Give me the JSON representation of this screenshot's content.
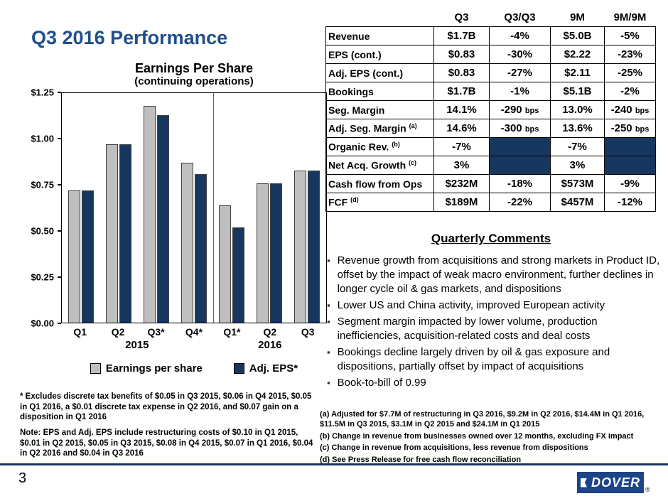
{
  "slide": {
    "title": "Q3 2016 Performance",
    "page_number": "3",
    "logo_text": "DOVER",
    "logo_registered": "®"
  },
  "colors": {
    "accent_navy": "#17375E",
    "title_blue": "#1F4E8E",
    "bar_gray": "#BFBFBF",
    "year_divider_blue": "#3C69A5"
  },
  "metrics_table": {
    "headers": [
      "",
      "Q3",
      "Q3/Q3",
      "9M",
      "9M/9M"
    ],
    "rows": [
      {
        "label": "Revenue",
        "values": [
          "$1.7B",
          "-4%",
          "$5.0B",
          "-5%"
        ]
      },
      {
        "label": "EPS (cont.)",
        "values": [
          "$0.83",
          "-30%",
          "$2.22",
          "-23%"
        ]
      },
      {
        "label": "Adj. EPS (cont.)",
        "values": [
          "$0.83",
          "-27%",
          "$2.11",
          "-25%"
        ]
      },
      {
        "label": "Bookings",
        "values": [
          "$1.7B",
          "-1%",
          "$5.1B",
          "-2%"
        ]
      },
      {
        "label": "Seg. Margin",
        "values": [
          "14.1%",
          "-290 bps",
          "13.0%",
          "-240 bps"
        ]
      },
      {
        "label": "Adj. Seg. Margin (a)",
        "values": [
          "14.6%",
          "-300 bps",
          "13.6%",
          "-250 bps"
        ]
      },
      {
        "label": "Organic Rev. (b)",
        "values": [
          "-7%",
          null,
          "-7%",
          null
        ]
      },
      {
        "label": "Net Acq. Growth (c)",
        "values": [
          "3%",
          null,
          "3%",
          null
        ]
      },
      {
        "label": "Cash flow from Ops",
        "values": [
          "$232M",
          "-18%",
          "$573M",
          "-9%"
        ]
      },
      {
        "label": "FCF (d)",
        "values": [
          "$189M",
          "-22%",
          "$457M",
          "-12%"
        ]
      }
    ]
  },
  "chart_data": {
    "type": "bar",
    "title": "Earnings Per Share",
    "subtitle": "(continuing operations)",
    "categories": [
      "Q1",
      "Q2",
      "Q3*",
      "Q4*",
      "Q1*",
      "Q2",
      "Q3"
    ],
    "year_groups": [
      {
        "label": "2015",
        "span": 4
      },
      {
        "label": "2016",
        "span": 3
      }
    ],
    "series": [
      {
        "name": "Earnings per share",
        "color": "#BFBFBF",
        "values": [
          0.72,
          0.97,
          1.18,
          0.87,
          0.64,
          0.76,
          0.83
        ]
      },
      {
        "name": "Adj. EPS*",
        "color": "#17375E",
        "values": [
          0.72,
          0.97,
          1.13,
          0.81,
          0.52,
          0.76,
          0.83
        ]
      }
    ],
    "ylim": [
      0,
      1.25
    ],
    "yticks": [
      "$1.25",
      "$1.00",
      "$0.75",
      "$0.50",
      "$0.25",
      "$0.00"
    ],
    "grid": false,
    "legend_position": "bottom"
  },
  "comments": {
    "heading": "Quarterly Comments",
    "bullets": [
      "Revenue growth from acquisitions and strong markets in Product ID, offset by the impact of weak macro environment, further declines in longer cycle oil & gas markets, and dispositions",
      "Lower US and China activity, improved European activity",
      "Segment margin impacted by lower volume, production inefficiencies, acquisition-related costs and deal costs",
      "Bookings decline largely driven by oil & gas exposure and dispositions, partially offset by impact of acquisitions",
      "Book-to-bill of 0.99"
    ]
  },
  "footnotes": {
    "left_tax": "* Excludes discrete tax benefits of $0.05 in Q3 2015, $0.06 in Q4 2015, $0.05 in Q1 2016, a $0.01 discrete tax expense in Q2 2016, and $0.07 gain on a disposition in Q1 2016",
    "left_note": "Note: EPS and Adj. EPS include restructuring costs of $0.10 in Q1 2015, $0.01 in Q2 2015, $0.05 in Q3 2015, $0.08 in Q4 2015, $0.07 in Q1 2016, $0.04 in Q2 2016 and $0.04 in Q3 2016",
    "right": [
      "(a) Adjusted for $7.7M of restructuring in Q3 2016, $9.2M in Q2 2016, $14.4M in Q1 2016, $11.5M in Q3 2015, $3.1M in Q2 2015 and $24.1M in Q1 2015",
      "(b) Change in revenue from businesses owned over 12 months, excluding FX impact",
      "(c) Change in revenue from acquisitions, less revenue from dispositions",
      "(d) See Press Release for free cash flow reconciliation"
    ]
  }
}
